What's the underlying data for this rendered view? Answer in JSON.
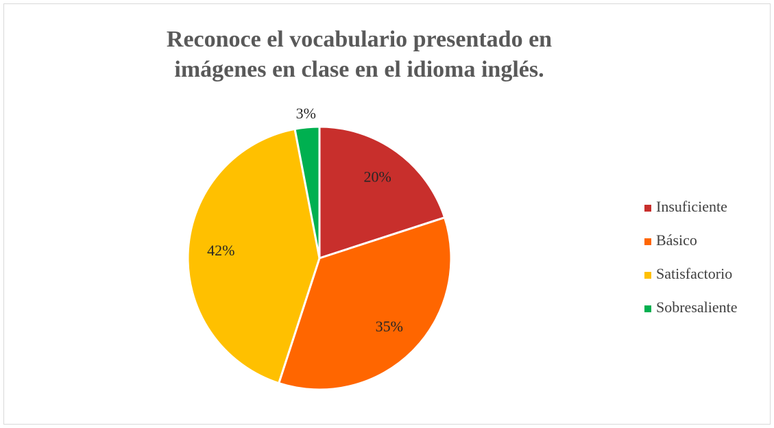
{
  "chart_data": {
    "type": "pie",
    "title": "Reconoce el vocabulario presentado en imágenes en clase en el idioma inglés.",
    "categories": [
      "Insuficiente",
      "Básico",
      "Satisfactorio",
      "Sobresaliente"
    ],
    "values": [
      20,
      35,
      42,
      3
    ],
    "value_labels": [
      "20%",
      "35%",
      "42%",
      "3%"
    ],
    "colors": [
      "#c82f2c",
      "#ff6600",
      "#ffc000",
      "#00b050"
    ],
    "legend": "right"
  }
}
